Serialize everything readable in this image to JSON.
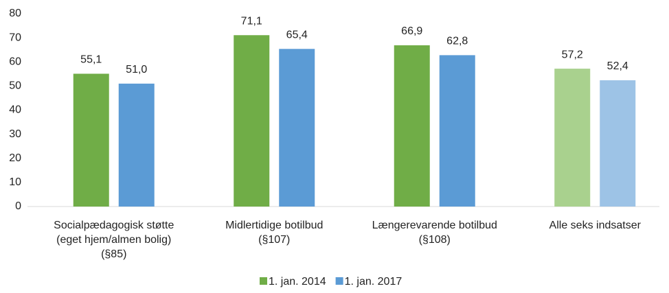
{
  "chart_data": {
    "type": "bar",
    "categories": [
      "Socialpædagogisk støtte\n(eget hjem/almen bolig)\n(§85)",
      "Midlertidige botilbud\n(§107)",
      "Længerevarende botilbud\n(§108)",
      "Alle seks indsatser"
    ],
    "series": [
      {
        "name": "1. jan. 2014",
        "color": "#70ad47",
        "colors": [
          "#70ad47",
          "#70ad47",
          "#70ad47",
          "#a9d18e"
        ],
        "values": [
          55.1,
          71.1,
          66.9,
          57.2
        ],
        "value_labels": [
          "55,1",
          "71,1",
          "66,9",
          "57,2"
        ]
      },
      {
        "name": "1. jan. 2017",
        "color": "#5b9bd5",
        "colors": [
          "#5b9bd5",
          "#5b9bd5",
          "#5b9bd5",
          "#9dc3e6"
        ],
        "values": [
          51.0,
          65.4,
          62.8,
          52.4
        ],
        "value_labels": [
          "51,0",
          "65,4",
          "62,8",
          "52,4"
        ]
      }
    ],
    "ylim": [
      0,
      80
    ],
    "yticks": [
      0,
      10,
      20,
      30,
      40,
      50,
      60,
      70,
      80
    ],
    "grid": false,
    "legend": "bottom"
  }
}
